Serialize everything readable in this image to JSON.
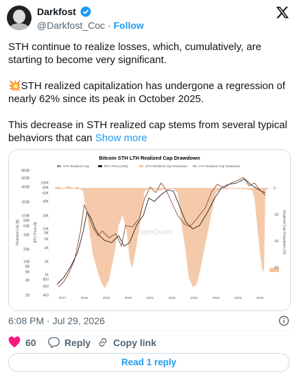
{
  "author": {
    "name": "Darkfost",
    "handle": "@Darkfost_Coc",
    "dot": "·",
    "follow": "Follow"
  },
  "post": {
    "paragraphs": [
      "STH continue to realize losses, which, cumulatively, are starting to become very significant.",
      "💥STH realized capitalization has undergone a regression of nearly 62% since its peak in October 2025.",
      "This decrease in STH realized cap stems from several typical behaviors that can"
    ],
    "show_more": "Show more"
  },
  "media": {
    "title": "Bitcoin STH LTH Realized Cap Drawdown",
    "legend": [
      "STH Realized Cap",
      "BTC Price [USD]",
      "STH Realized Cap Drawdown",
      "LTH Realized Cap Drawdown"
    ],
    "y_left_label": "Realized Cap ($)",
    "y_left_ticks": [
      "800B",
      "600B",
      "400B",
      "200B",
      "100B",
      "80B",
      "60B",
      "40B",
      "20B",
      "10B",
      "8B",
      "6B",
      "4B",
      "2B"
    ],
    "y_price_label": "BTC Price ($)",
    "y_price_ticks": [
      "100K",
      "80K",
      "60K",
      "40K",
      "20K",
      "10K",
      "8K",
      "6K",
      "4K",
      "2K",
      "1K",
      800,
      600,
      400
    ],
    "y_right_label": "Realized Cap Drawdown (%)",
    "y_right_ticks": [
      0,
      -20,
      -40,
      -60
    ],
    "x_ticks": [
      2017,
      2018,
      2019,
      2020,
      2021,
      2022,
      2023,
      2024,
      2025,
      2026
    ],
    "watermark": "CryptoQuant"
  },
  "timestamp": "6:08 PM · Jul 29, 2026",
  "actions": {
    "likes": 60,
    "reply": "Reply",
    "copy_link": "Copy link"
  },
  "read_replies": "Read 1 reply"
}
